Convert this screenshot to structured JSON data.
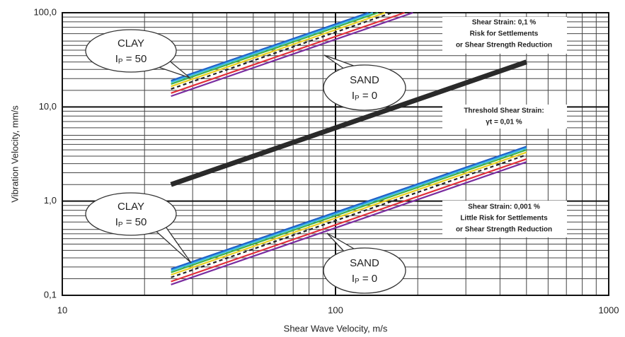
{
  "chart_data": {
    "type": "line",
    "xlabel": "Shear Wave Velocity, m/s",
    "ylabel": "Vibration Velocity, mm/s",
    "xscale": "log",
    "yscale": "log",
    "xlim": [
      10,
      1000
    ],
    "ylim": [
      0.1,
      100
    ],
    "xticks": [
      10,
      100,
      1000
    ],
    "yticks": [
      {
        "value": 0.1,
        "label": "0,1"
      },
      {
        "value": 1,
        "label": "1,0"
      },
      {
        "value": 10,
        "label": "10,0"
      },
      {
        "value": 100,
        "label": "100,0"
      }
    ],
    "grid": true,
    "series": [
      {
        "color": "#7a2da0",
        "x": [
          25,
          192
        ],
        "values": [
          13,
          100
        ]
      },
      {
        "color": "#e0303a",
        "x": [
          25,
          179
        ],
        "values": [
          14,
          100
        ]
      },
      {
        "color": "#222222",
        "dash": true,
        "x": [
          25,
          161
        ],
        "values": [
          15.5,
          100
        ]
      },
      {
        "color": "#e8d020",
        "x": [
          25,
          152
        ],
        "values": [
          16.5,
          100
        ]
      },
      {
        "color": "#3cb04a",
        "x": [
          25,
          143
        ],
        "values": [
          17.5,
          100
        ]
      },
      {
        "color": "#38b8e8",
        "x": [
          25,
          137
        ],
        "values": [
          18.3,
          100
        ]
      },
      {
        "color": "#1f5fc8",
        "x": [
          25,
          132
        ],
        "values": [
          19,
          100
        ]
      },
      {
        "color": "#2a2a2a",
        "linewidth": 7,
        "x": [
          25,
          500
        ],
        "values": [
          1.5,
          30
        ]
      },
      {
        "color": "#7a2da0",
        "x": [
          25,
          500
        ],
        "values": [
          0.13,
          2.6
        ]
      },
      {
        "color": "#e0303a",
        "x": [
          25,
          500
        ],
        "values": [
          0.14,
          2.8
        ]
      },
      {
        "color": "#222222",
        "dash": true,
        "x": [
          25,
          500
        ],
        "values": [
          0.155,
          3.1
        ]
      },
      {
        "color": "#e8d020",
        "x": [
          25,
          500
        ],
        "values": [
          0.165,
          3.3
        ]
      },
      {
        "color": "#3cb04a",
        "x": [
          25,
          500
        ],
        "values": [
          0.175,
          3.5
        ]
      },
      {
        "color": "#38b8e8",
        "x": [
          25,
          500
        ],
        "values": [
          0.183,
          3.66
        ]
      },
      {
        "color": "#1f5fc8",
        "x": [
          25,
          500
        ],
        "values": [
          0.19,
          3.8
        ]
      }
    ],
    "annotations": {
      "clay_upper": {
        "name": "CLAY",
        "i": "I",
        "sub": "P",
        "rest": " = 50"
      },
      "sand_upper": {
        "name": "SAND",
        "i": "I",
        "sub": "P",
        "rest": " = 0"
      },
      "clay_lower": {
        "name": "CLAY",
        "i": "I",
        "sub": "P",
        "rest": " = 50"
      },
      "sand_lower": {
        "name": "SAND",
        "i": "I",
        "sub": "P",
        "rest": " = 0"
      },
      "upper_note": [
        "Shear Strain: 0,1 %",
        "Risk for Settlements",
        "or Shear Strength Reduction"
      ],
      "threshold_note": [
        "Threshold Shear Strain:",
        "γt = 0,01 %"
      ],
      "lower_note": [
        "Shear Strain: 0,001 %",
        "Little Risk for Settlements",
        "or Shear Strength Reduction"
      ]
    }
  }
}
